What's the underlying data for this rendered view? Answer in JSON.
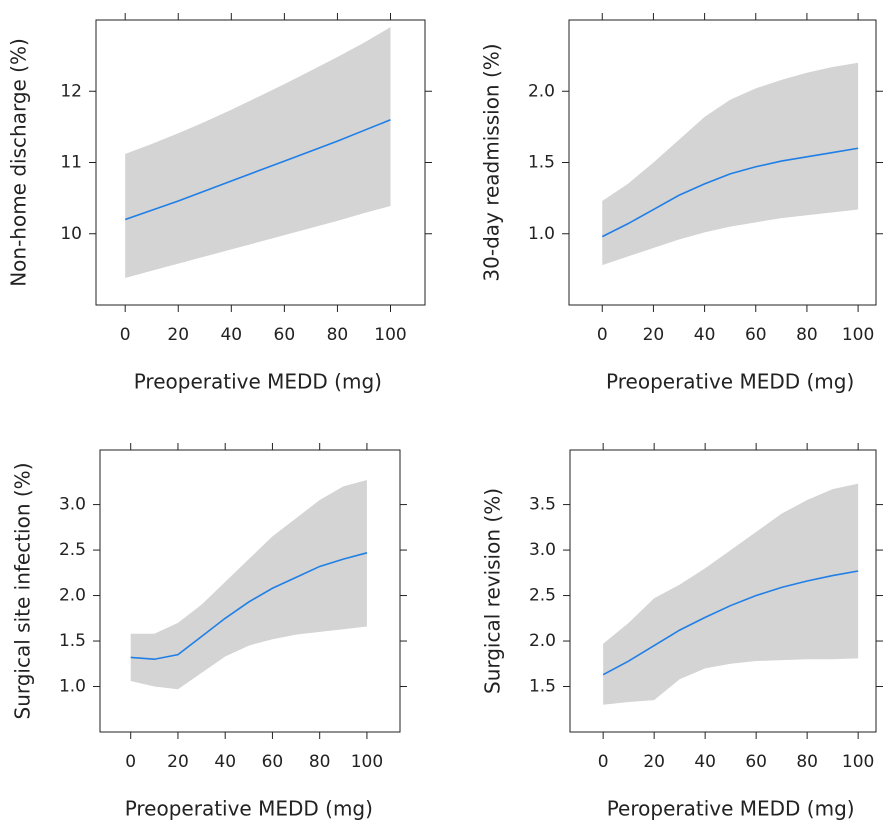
{
  "chart_data": [
    {
      "type": "line",
      "xlabel": "Preoperative MEDD (mg)",
      "ylabel": "Non-home discharge (%)",
      "x": [
        0,
        10,
        20,
        30,
        40,
        50,
        60,
        70,
        80,
        90,
        100
      ],
      "values": [
        10.2,
        10.33,
        10.46,
        10.6,
        10.74,
        10.88,
        11.02,
        11.16,
        11.3,
        11.45,
        11.6
      ],
      "upper": [
        11.12,
        11.26,
        11.41,
        11.57,
        11.74,
        11.92,
        12.1,
        12.29,
        12.48,
        12.68,
        12.9
      ],
      "lower": [
        9.38,
        9.48,
        9.58,
        9.68,
        9.78,
        9.88,
        9.98,
        10.08,
        10.18,
        10.29,
        10.39
      ],
      "color": "#1f7fe6",
      "band_color": "#d4d4d4",
      "xlim": [
        -11,
        113
      ],
      "xticks": [
        0,
        20,
        40,
        60,
        80,
        100
      ],
      "ylim": [
        9,
        13
      ],
      "yticks": [
        10,
        11,
        12
      ]
    },
    {
      "type": "line",
      "xlabel": "Preoperative MEDD (mg)",
      "ylabel": "30-day readmission (%)",
      "x": [
        0,
        10,
        20,
        30,
        40,
        50,
        60,
        70,
        80,
        90,
        100
      ],
      "values": [
        0.98,
        1.07,
        1.17,
        1.27,
        1.35,
        1.42,
        1.47,
        1.51,
        1.54,
        1.57,
        1.6
      ],
      "upper": [
        1.23,
        1.35,
        1.5,
        1.66,
        1.82,
        1.94,
        2.02,
        2.08,
        2.13,
        2.17,
        2.2
      ],
      "lower": [
        0.78,
        0.84,
        0.9,
        0.96,
        1.01,
        1.05,
        1.08,
        1.11,
        1.13,
        1.15,
        1.17
      ],
      "color": "#1f7fe6",
      "band_color": "#d4d4d4",
      "xlim": [
        -13,
        107
      ],
      "xticks": [
        0,
        20,
        40,
        60,
        80,
        100
      ],
      "ylim": [
        0.5,
        2.5
      ],
      "yticks": [
        {
          "value": 1,
          "label": "1.0"
        },
        1.5,
        {
          "value": 2,
          "label": "2.0"
        }
      ]
    },
    {
      "type": "line",
      "xlabel": "Preoperative MEDD (mg)",
      "ylabel": "Surgical site infection (%)",
      "x": [
        0,
        10,
        20,
        30,
        40,
        50,
        60,
        70,
        80,
        90,
        100
      ],
      "values": [
        1.32,
        1.3,
        1.35,
        1.55,
        1.75,
        1.93,
        2.08,
        2.2,
        2.32,
        2.4,
        2.47
      ],
      "upper": [
        1.58,
        1.58,
        1.7,
        1.9,
        2.15,
        2.4,
        2.65,
        2.85,
        3.05,
        3.2,
        3.27
      ],
      "lower": [
        1.06,
        1.0,
        0.97,
        1.15,
        1.33,
        1.45,
        1.52,
        1.57,
        1.6,
        1.63,
        1.66
      ],
      "color": "#1f7fe6",
      "band_color": "#d4d4d4",
      "xlim": [
        -13,
        114
      ],
      "xticks": [
        0,
        20,
        40,
        60,
        80,
        100
      ],
      "ylim": [
        0.5,
        3.6
      ],
      "yticks": [
        {
          "value": 1,
          "label": "1.0"
        },
        1.5,
        {
          "value": 2,
          "label": "2.0"
        },
        2.5,
        {
          "value": 3,
          "label": "3.0"
        }
      ]
    },
    {
      "type": "line",
      "xlabel": "Peroperative MEDD (mg)",
      "ylabel": "Surgical revision (%)",
      "x": [
        0,
        10,
        20,
        30,
        40,
        50,
        60,
        70,
        80,
        90,
        100
      ],
      "values": [
        1.63,
        1.78,
        1.95,
        2.12,
        2.26,
        2.39,
        2.5,
        2.59,
        2.66,
        2.72,
        2.77
      ],
      "upper": [
        1.97,
        2.2,
        2.47,
        2.62,
        2.8,
        3.0,
        3.2,
        3.4,
        3.55,
        3.67,
        3.73
      ],
      "lower": [
        1.3,
        1.33,
        1.35,
        1.58,
        1.7,
        1.75,
        1.78,
        1.79,
        1.8,
        1.8,
        1.81
      ],
      "color": "#1f7fe6",
      "band_color": "#d4d4d4",
      "xlim": [
        -13,
        107
      ],
      "xticks": [
        0,
        20,
        40,
        60,
        80,
        100
      ],
      "ylim": [
        1.0,
        4.1
      ],
      "yticks": [
        1.5,
        {
          "value": 2,
          "label": "2.0"
        },
        2.5,
        {
          "value": 3,
          "label": "3.0"
        },
        3.5
      ]
    }
  ]
}
